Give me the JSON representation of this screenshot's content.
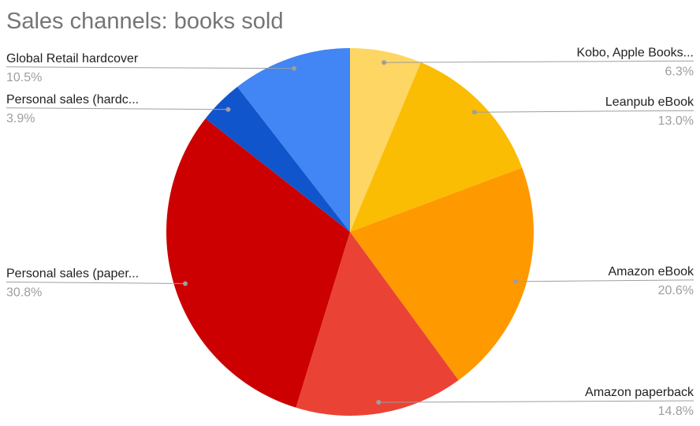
{
  "chart_data": {
    "type": "pie",
    "title": "Sales channels: books sold",
    "categories": [
      "Kobo, Apple Books...",
      "Leanpub eBook",
      "Amazon eBook",
      "Amazon paperback",
      "Personal sales (paper...",
      "Personal sales (hardc...",
      "Global Retail hardcover"
    ],
    "values": [
      6.3,
      13.0,
      20.6,
      14.8,
      30.8,
      3.9,
      10.5
    ],
    "value_labels": [
      "6.3%",
      "13.0%",
      "20.6%",
      "14.8%",
      "30.8%",
      "3.9%",
      "10.5%"
    ],
    "colors": [
      "#fdd663",
      "#fbbc04",
      "#ff9900",
      "#ea4335",
      "#cc0000",
      "#1155cc",
      "#4285f4"
    ]
  }
}
